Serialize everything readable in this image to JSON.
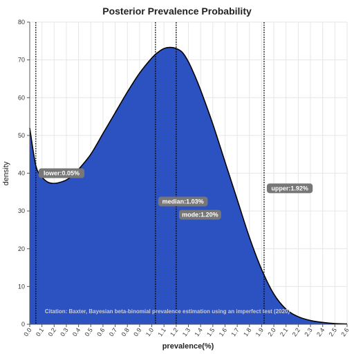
{
  "chart_data": {
    "type": "area",
    "title": "Posterior Prevalence Probability",
    "xlabel": "prevalence(%)",
    "ylabel": "density",
    "xlim": [
      0,
      2.6
    ],
    "ylim": [
      0,
      80
    ],
    "x_ticks": [
      "0.0",
      "0.1",
      "0.2",
      "0.3",
      "0.4",
      "0.5",
      "0.6",
      "0.7",
      "0.8",
      "0.9",
      "1.0",
      "1.1",
      "1.2",
      "1.3",
      "1.4",
      "1.5",
      "1.6",
      "1.7",
      "1.8",
      "1.9",
      "2.0",
      "2.1",
      "2.2",
      "2.3",
      "2.4",
      "2.5",
      "2.6"
    ],
    "y_ticks": [
      "0",
      "10",
      "20",
      "30",
      "40",
      "50",
      "60",
      "70",
      "80"
    ],
    "grid": true,
    "fill_color": "#2b52c0",
    "line_color": "#000000",
    "series": [
      {
        "x": [
          0.0,
          0.05,
          0.1,
          0.15,
          0.2,
          0.25,
          0.3,
          0.35,
          0.4,
          0.5,
          0.6,
          0.7,
          0.8,
          0.9,
          1.0,
          1.05,
          1.1,
          1.15,
          1.2,
          1.25,
          1.3,
          1.35,
          1.4,
          1.5,
          1.6,
          1.7,
          1.8,
          1.9,
          2.0,
          2.1,
          2.2,
          2.3,
          2.4,
          2.5,
          2.6
        ],
        "y": [
          52,
          42,
          39,
          37.6,
          37.3,
          37.6,
          38.2,
          39.3,
          41,
          45,
          50.5,
          56,
          61.5,
          66.5,
          70.5,
          72,
          73,
          73.3,
          73,
          72,
          69.5,
          66,
          62,
          53,
          43,
          33,
          23,
          14.5,
          8,
          4,
          2,
          1,
          0.5,
          0.2,
          0.1
        ]
      }
    ],
    "annotations": [
      {
        "label": "lower:0.05%",
        "x": 0.05,
        "y": 40
      },
      {
        "label": "median:1.03%",
        "x": 1.03,
        "y": 32.5
      },
      {
        "label": "mode:1.20%",
        "x": 1.2,
        "y": 29
      },
      {
        "label": "upper:1.92%",
        "x": 1.92,
        "y": 36
      }
    ],
    "citation": "Citation: Baxter, Bayesian beta-binomial prevalence estimation using an imperfect test (2020)"
  }
}
